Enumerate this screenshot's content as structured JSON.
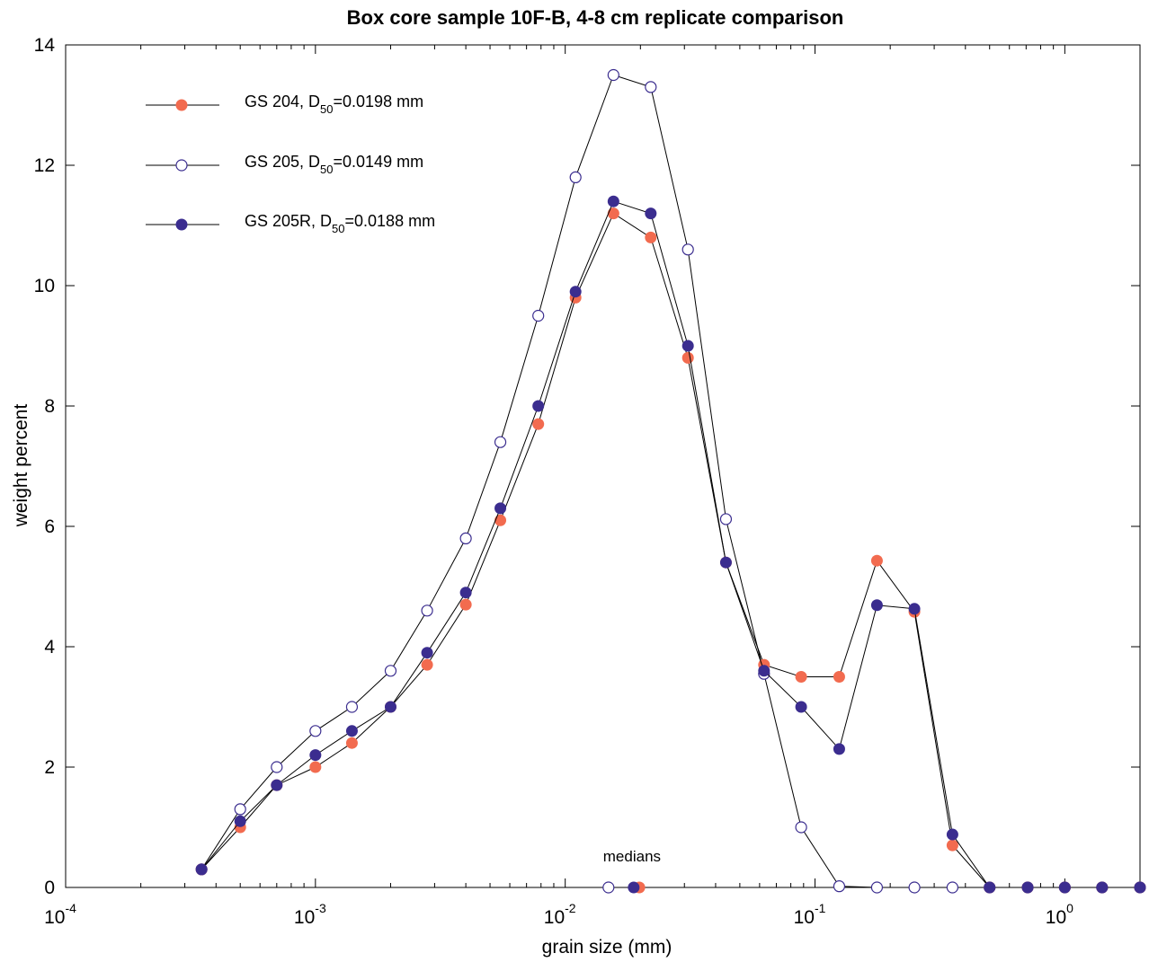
{
  "chart_data": {
    "type": "line",
    "title": "Box core sample 10F-B, 4-8 cm replicate comparison",
    "xlabel": "grain size (mm)",
    "ylabel": "weight percent",
    "xscale": "log",
    "xlim": [
      0.0001,
      2.0
    ],
    "ylim": [
      0,
      14
    ],
    "grid": false,
    "legend_position": "top-left",
    "x_ticks": [
      {
        "value": 0.0001,
        "base": "10",
        "exp": "-4"
      },
      {
        "value": 0.001,
        "base": "10",
        "exp": "-3"
      },
      {
        "value": 0.01,
        "base": "10",
        "exp": "-2"
      },
      {
        "value": 0.1,
        "base": "10",
        "exp": "-1"
      },
      {
        "value": 1,
        "base": "10",
        "exp": "0"
      }
    ],
    "y_ticks": [
      "0",
      "2",
      "4",
      "6",
      "8",
      "10",
      "12",
      "14"
    ],
    "x": [
      0.00035,
      0.0005,
      0.0007,
      0.001,
      0.0014,
      0.002,
      0.0028,
      0.004,
      0.0055,
      0.0078,
      0.011,
      0.0156,
      0.022,
      0.031,
      0.044,
      0.0625,
      0.088,
      0.125,
      0.177,
      0.25,
      0.355,
      0.5,
      0.71,
      1.0,
      1.41,
      2.0
    ],
    "series": [
      {
        "label_main": "GS 204, D",
        "label_sub": "50",
        "label_tail": "=0.0198 mm",
        "marker": "filled-circle",
        "color": "#f26b4f",
        "values": [
          0.3,
          1.0,
          1.7,
          2.0,
          2.4,
          3.0,
          3.7,
          4.7,
          6.1,
          7.7,
          9.8,
          11.2,
          10.8,
          8.8,
          5.4,
          3.7,
          3.5,
          3.5,
          5.43,
          4.58,
          0.7,
          0,
          0,
          0,
          0,
          0
        ],
        "median": 0.0198
      },
      {
        "label_main": "GS 205, D",
        "label_sub": "50",
        "label_tail": "=0.0149 mm",
        "marker": "open-circle",
        "color": "#3b2d8f",
        "values": [
          0.3,
          1.3,
          2.0,
          2.6,
          3.0,
          3.6,
          4.6,
          5.8,
          7.4,
          9.5,
          11.8,
          13.5,
          13.3,
          10.6,
          6.12,
          3.55,
          1.0,
          0.02,
          0,
          0,
          0,
          0,
          0,
          0,
          0,
          0
        ],
        "median": 0.0149
      },
      {
        "label_main": "GS 205R, D",
        "label_sub": "50",
        "label_tail": "=0.0188 mm",
        "marker": "filled-circle",
        "color": "#3b2d8f",
        "values": [
          0.3,
          1.1,
          1.7,
          2.2,
          2.6,
          3.0,
          3.9,
          4.9,
          6.3,
          8.0,
          9.9,
          11.4,
          11.2,
          9.0,
          5.4,
          3.6,
          3.0,
          2.3,
          4.69,
          4.63,
          0.88,
          0,
          0,
          0,
          0,
          0
        ],
        "median": 0.0188
      }
    ],
    "annotations": [
      {
        "text": "medians",
        "x": 0.0185,
        "y": 0.4
      }
    ]
  }
}
